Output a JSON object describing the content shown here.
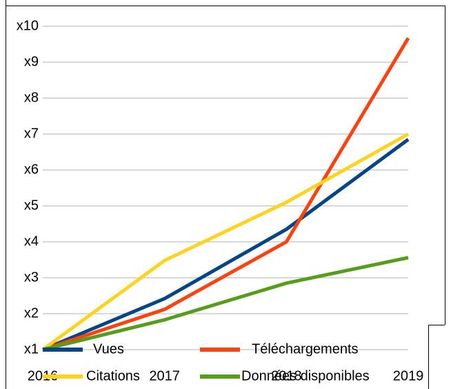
{
  "chart_data": {
    "type": "line",
    "categories": [
      "2016",
      "2017",
      "2018",
      "2019"
    ],
    "series": [
      {
        "name": "Vues",
        "color": "#004586",
        "values": [
          1,
          2.42,
          4.35,
          6.85
        ]
      },
      {
        "name": "Téléchargements",
        "color": "#ff420e",
        "values": [
          1,
          2.12,
          4.0,
          9.67
        ]
      },
      {
        "name": "Citations",
        "color": "#ffd320",
        "values": [
          1,
          3.48,
          5.1,
          7.0
        ]
      },
      {
        "name": "Données disponibles",
        "color": "#579d1c",
        "values": [
          1,
          1.83,
          2.85,
          3.56
        ]
      }
    ],
    "ylim": [
      1,
      10
    ],
    "yticks": [
      {
        "value": 1,
        "label": "x1"
      },
      {
        "value": 2,
        "label": "x2"
      },
      {
        "value": 3,
        "label": "x3"
      },
      {
        "value": 4,
        "label": "x4"
      },
      {
        "value": 5,
        "label": "x5"
      },
      {
        "value": 6,
        "label": "x6"
      },
      {
        "value": 7,
        "label": "x7"
      },
      {
        "value": 8,
        "label": "x8"
      },
      {
        "value": 9,
        "label": "x9"
      },
      {
        "value": 10,
        "label": "x10"
      }
    ],
    "grid": true
  }
}
